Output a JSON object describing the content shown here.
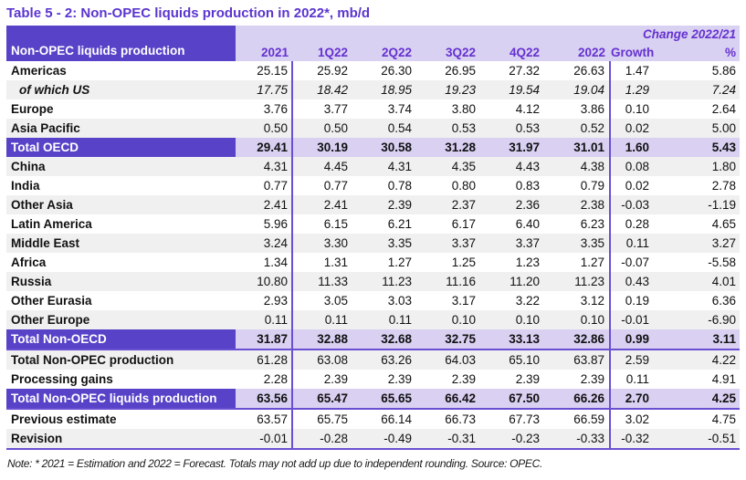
{
  "title": "Table 5 - 2: Non-OPEC liquids production in 2022*, mb/d",
  "table": {
    "corner_label": "Non-OPEC liquids production",
    "change_header": "Change 2022/21",
    "columns": [
      "2021",
      "1Q22",
      "2Q22",
      "3Q22",
      "4Q22",
      "2022",
      "Growth",
      "%"
    ],
    "rows": [
      {
        "label": "Americas",
        "style": "normal",
        "values": [
          "25.15",
          "25.92",
          "26.30",
          "26.95",
          "27.32",
          "26.63",
          "1.47",
          "5.86"
        ]
      },
      {
        "label": "of which US",
        "style": "italic-sub",
        "values": [
          "17.75",
          "18.42",
          "18.95",
          "19.23",
          "19.54",
          "19.04",
          "1.29",
          "7.24"
        ]
      },
      {
        "label": "Europe",
        "style": "normal",
        "values": [
          "3.76",
          "3.77",
          "3.74",
          "3.80",
          "4.12",
          "3.86",
          "0.10",
          "2.64"
        ]
      },
      {
        "label": "Asia Pacific",
        "style": "normal",
        "values": [
          "0.50",
          "0.50",
          "0.54",
          "0.53",
          "0.53",
          "0.52",
          "0.02",
          "5.00"
        ]
      },
      {
        "label": "Total OECD",
        "style": "total",
        "separator_below": false,
        "values": [
          "29.41",
          "30.19",
          "30.58",
          "31.28",
          "31.97",
          "31.01",
          "1.60",
          "5.43"
        ]
      },
      {
        "label": "China",
        "style": "normal",
        "values": [
          "4.31",
          "4.45",
          "4.31",
          "4.35",
          "4.43",
          "4.38",
          "0.08",
          "1.80"
        ]
      },
      {
        "label": "India",
        "style": "normal",
        "values": [
          "0.77",
          "0.77",
          "0.78",
          "0.80",
          "0.83",
          "0.79",
          "0.02",
          "2.78"
        ]
      },
      {
        "label": "Other Asia",
        "style": "normal",
        "values": [
          "2.41",
          "2.41",
          "2.39",
          "2.37",
          "2.36",
          "2.38",
          "-0.03",
          "-1.19"
        ]
      },
      {
        "label": "Latin America",
        "style": "normal",
        "values": [
          "5.96",
          "6.15",
          "6.21",
          "6.17",
          "6.40",
          "6.23",
          "0.28",
          "4.65"
        ]
      },
      {
        "label": "Middle East",
        "style": "normal",
        "values": [
          "3.24",
          "3.30",
          "3.35",
          "3.37",
          "3.37",
          "3.35",
          "0.11",
          "3.27"
        ]
      },
      {
        "label": "Africa",
        "style": "normal",
        "values": [
          "1.34",
          "1.31",
          "1.27",
          "1.25",
          "1.23",
          "1.27",
          "-0.07",
          "-5.58"
        ]
      },
      {
        "label": "Russia",
        "style": "normal",
        "values": [
          "10.80",
          "11.33",
          "11.23",
          "11.16",
          "11.20",
          "11.23",
          "0.43",
          "4.01"
        ]
      },
      {
        "label": "Other Eurasia",
        "style": "normal",
        "values": [
          "2.93",
          "3.05",
          "3.03",
          "3.17",
          "3.22",
          "3.12",
          "0.19",
          "6.36"
        ]
      },
      {
        "label": "Other Europe",
        "style": "normal",
        "values": [
          "0.11",
          "0.11",
          "0.11",
          "0.10",
          "0.10",
          "0.10",
          "-0.01",
          "-6.90"
        ]
      },
      {
        "label": "Total Non-OECD",
        "style": "total",
        "separator_below": true,
        "values": [
          "31.87",
          "32.88",
          "32.68",
          "32.75",
          "33.13",
          "32.86",
          "0.99",
          "3.11"
        ]
      },
      {
        "label": "Total Non-OPEC production",
        "style": "normal",
        "values": [
          "61.28",
          "63.08",
          "63.26",
          "64.03",
          "65.10",
          "63.87",
          "2.59",
          "4.22"
        ]
      },
      {
        "label": "Processing gains",
        "style": "normal",
        "values": [
          "2.28",
          "2.39",
          "2.39",
          "2.39",
          "2.39",
          "2.39",
          "0.11",
          "4.91"
        ]
      },
      {
        "label": "Total Non-OPEC liquids production",
        "style": "total",
        "separator_below": true,
        "values": [
          "63.56",
          "65.47",
          "65.65",
          "66.42",
          "67.50",
          "66.26",
          "2.70",
          "4.25"
        ]
      },
      {
        "label": "Previous estimate",
        "style": "normal",
        "values": [
          "63.57",
          "65.75",
          "66.14",
          "66.73",
          "67.73",
          "66.59",
          "3.02",
          "4.75"
        ]
      },
      {
        "label": "Revision",
        "style": "normal",
        "values": [
          "-0.01",
          "-0.28",
          "-0.49",
          "-0.31",
          "-0.23",
          "-0.33",
          "-0.32",
          "-0.51"
        ]
      }
    ]
  },
  "note": "Note: * 2021 = Estimation and 2022 = Forecast. Totals may not add up due to independent rounding. Source: OPEC.",
  "colors": {
    "header_bg": "#5842c8",
    "header_light_bg": "#d9d1f1",
    "total_value_bg": "#d9d0f2",
    "accent_text": "#6531d1",
    "title_color": "#5b35cf",
    "separator": "#6a4fd2",
    "stripe": "#f0f0f0"
  }
}
